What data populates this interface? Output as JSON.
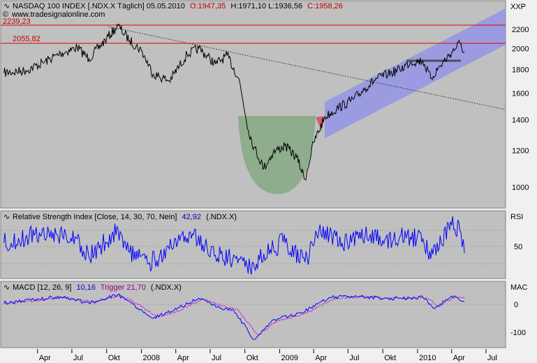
{
  "price_panel": {
    "header_title": "NASDAQ 100 INDEX [.NDX.X  Täglich] 05.05.2010",
    "header_open": "O:1947,35",
    "header_high_low": "H:1971,10 L:1936,56",
    "header_close": "C:1958,26",
    "source": "www.tradesignalonline.com",
    "scale_label": "XXP",
    "level_labels": [
      "2239,23",
      "2055,82"
    ],
    "y_ticks": [
      "2200",
      "2000",
      "1800",
      "1600",
      "1400",
      "1200",
      "1000"
    ]
  },
  "rsi_panel": {
    "header": "Relative Strength Index [Close, 14, 30, 70, Nein]",
    "header_value": "42,92",
    "header_symbol": "(.NDX.X)",
    "scale_label": "RSI",
    "y_ticks": [
      "50"
    ]
  },
  "macd_panel": {
    "header": "MACD [12, 26, 9]",
    "header_macd": "10,16",
    "header_trigger": "Trigger 21,70",
    "header_symbol": "(.NDX.X)",
    "scale_label": "MAC",
    "y_ticks": [
      "0",
      "-100"
    ]
  },
  "x_axis": {
    "labels": [
      "Apr",
      "Jul",
      "Okt",
      "2008",
      "Apr",
      "Jul",
      "Okt",
      "2009",
      "Apr",
      "Jul",
      "Okt",
      "2010",
      "Apr",
      "Jul"
    ]
  },
  "colors": {
    "panel_bg": "#c0c0c0",
    "window_bg": "#f0f0f0",
    "price": "#000000",
    "level_line": "#e00000",
    "channel": "#8c8cf0",
    "cup": "#80a880",
    "rsi": "#0000ff",
    "macd": "#0000ff",
    "trigger": "#cc00cc",
    "header_red": "#c00000",
    "header_blue": "#0000c0",
    "header_purple": "#900090"
  },
  "chart_data": [
    {
      "type": "line",
      "series": [
        {
          "name": "NASDAQ 100 INDEX",
          "x": [
            "2007-01-02",
            "2007-03-01",
            "2007-04-15",
            "2007-06-01",
            "2007-07-15",
            "2007-08-15",
            "2007-10-01",
            "2007-10-31",
            "2007-12-01",
            "2008-01-01",
            "2008-02-01",
            "2008-03-15",
            "2008-05-01",
            "2008-06-01",
            "2008-07-15",
            "2008-08-15",
            "2008-09-15",
            "2008-10-10",
            "2008-10-25",
            "2008-11-20",
            "2008-12-15",
            "2009-01-15",
            "2009-02-15",
            "2009-03-09",
            "2009-04-01",
            "2009-05-01",
            "2009-06-01",
            "2009-07-15",
            "2009-08-15",
            "2009-09-15",
            "2009-10-15",
            "2009-11-15",
            "2009-12-15",
            "2010-01-15",
            "2010-02-05",
            "2010-03-01",
            "2010-04-01",
            "2010-04-23",
            "2010-05-05"
          ],
          "y": [
            1770,
            1790,
            1860,
            1950,
            2010,
            1900,
            2100,
            2239,
            2080,
            1980,
            1760,
            1700,
            1940,
            2000,
            1850,
            1930,
            1720,
            1330,
            1220,
            1100,
            1190,
            1230,
            1160,
            1040,
            1250,
            1420,
            1480,
            1550,
            1640,
            1720,
            1760,
            1800,
            1870,
            1880,
            1720,
            1830,
            1960,
            2055,
            1958
          ]
        }
      ],
      "ylim": [
        900,
        2300
      ],
      "scale": "log"
    },
    {
      "type": "line",
      "title": "Relative Strength Index [Close, 14, 30, 70, Nein]",
      "series": [
        {
          "name": "RSI",
          "x": [
            "2007-01-02",
            "2007-03-01",
            "2007-05-01",
            "2007-07-15",
            "2007-08-15",
            "2007-10-31",
            "2007-12-01",
            "2008-01-20",
            "2008-03-15",
            "2008-05-15",
            "2008-07-15",
            "2008-09-15",
            "2008-10-15",
            "2008-11-20",
            "2009-01-10",
            "2009-03-09",
            "2009-04-15",
            "2009-06-15",
            "2009-08-15",
            "2009-10-01",
            "2009-11-15",
            "2010-01-15",
            "2010-02-05",
            "2010-04-01",
            "2010-04-23",
            "2010-05-05"
          ],
          "y": [
            55,
            62,
            68,
            60,
            38,
            72,
            44,
            30,
            48,
            66,
            40,
            36,
            24,
            42,
            56,
            32,
            70,
            55,
            64,
            58,
            63,
            60,
            36,
            76,
            70,
            42.92
          ]
        }
      ],
      "ylim": [
        0,
        100
      ]
    },
    {
      "type": "line",
      "title": "MACD [12, 26, 9]",
      "series": [
        {
          "name": "MACD",
          "x": [
            "2007-01-02",
            "2007-03-15",
            "2007-06-01",
            "2007-08-15",
            "2007-10-31",
            "2007-12-15",
            "2008-02-01",
            "2008-03-20",
            "2008-06-01",
            "2008-07-20",
            "2008-09-01",
            "2008-10-25",
            "2008-12-15",
            "2009-03-01",
            "2009-05-15",
            "2009-08-01",
            "2009-10-01",
            "2009-11-15",
            "2010-01-15",
            "2010-02-15",
            "2010-04-01",
            "2010-05-05"
          ],
          "y": [
            5,
            15,
            28,
            5,
            35,
            -5,
            -50,
            -25,
            22,
            -10,
            -22,
            -125,
            -55,
            -30,
            25,
            30,
            20,
            22,
            25,
            -15,
            30,
            10.16
          ]
        },
        {
          "name": "Trigger",
          "x": [
            "2007-01-02",
            "2007-03-20",
            "2007-06-10",
            "2007-08-25",
            "2007-11-10",
            "2007-12-25",
            "2008-02-10",
            "2008-04-01",
            "2008-06-10",
            "2008-08-01",
            "2008-09-10",
            "2008-11-05",
            "2008-12-25",
            "2009-03-10",
            "2009-05-25",
            "2009-08-10",
            "2009-10-10",
            "2009-11-25",
            "2010-01-25",
            "2010-02-25",
            "2010-04-10",
            "2010-05-05"
          ],
          "y": [
            2,
            12,
            25,
            8,
            30,
            0,
            -45,
            -28,
            18,
            -5,
            -18,
            -110,
            -60,
            -32,
            20,
            28,
            22,
            21,
            24,
            -8,
            26,
            21.7
          ]
        }
      ],
      "ylim": [
        -140,
        60
      ]
    }
  ]
}
